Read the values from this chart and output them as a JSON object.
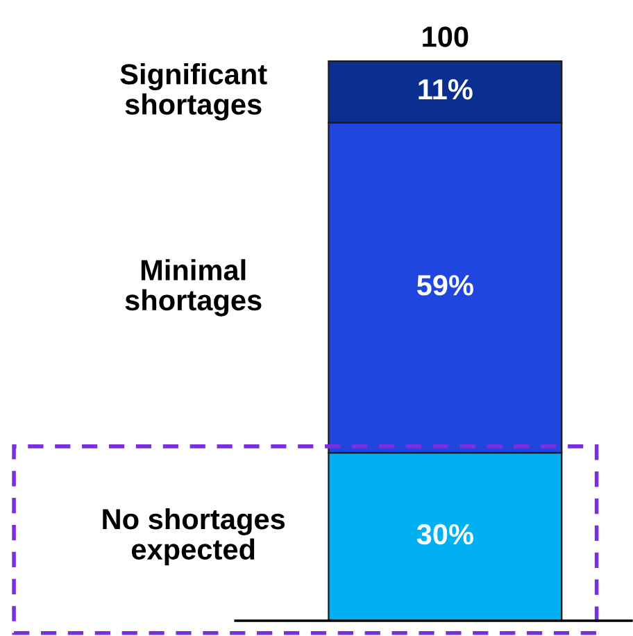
{
  "chart_data": {
    "type": "bar",
    "stacked": true,
    "categories": [
      null
    ],
    "series": [
      {
        "name": "No shortages\nexpected",
        "color": "#00b0f0",
        "values": [
          30
        ],
        "value_labels": [
          "30%"
        ]
      },
      {
        "name": "Minimal\nshortages",
        "color": "#2046e0",
        "values": [
          59
        ],
        "value_labels": [
          "59%"
        ]
      },
      {
        "name": "Significant\nshortages",
        "color": "#0a2f8f",
        "values": [
          11
        ],
        "value_labels": [
          "11%"
        ]
      }
    ],
    "totals": [
      "100"
    ],
    "legend": false
  }
}
